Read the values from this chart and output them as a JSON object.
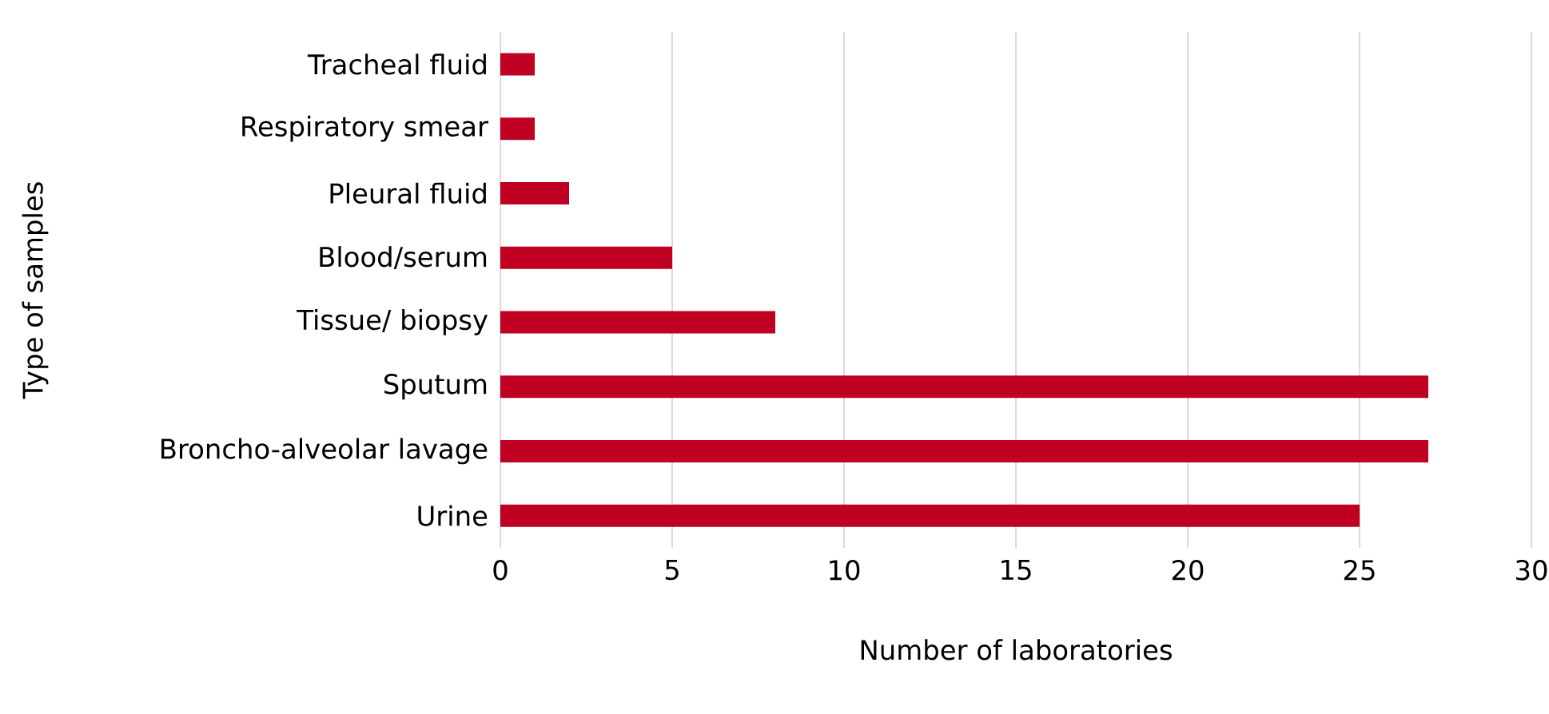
{
  "chart_data": {
    "type": "bar",
    "orientation": "horizontal",
    "categories": [
      "Tracheal fluid",
      "Respiratory smear",
      "Pleural fluid",
      "Blood/serum",
      "Tissue/ biopsy",
      "Sputum",
      "Broncho-alveolar lavage",
      "Urine"
    ],
    "values": [
      1,
      1,
      2,
      5,
      8,
      27,
      27,
      25
    ],
    "color": "#c00023",
    "xlim": [
      0,
      30
    ],
    "xticks": [
      0,
      5,
      10,
      15,
      20,
      25,
      30
    ],
    "xlabel": "Number of laboratories",
    "ylabel": "Type of samples",
    "grid": "x"
  }
}
